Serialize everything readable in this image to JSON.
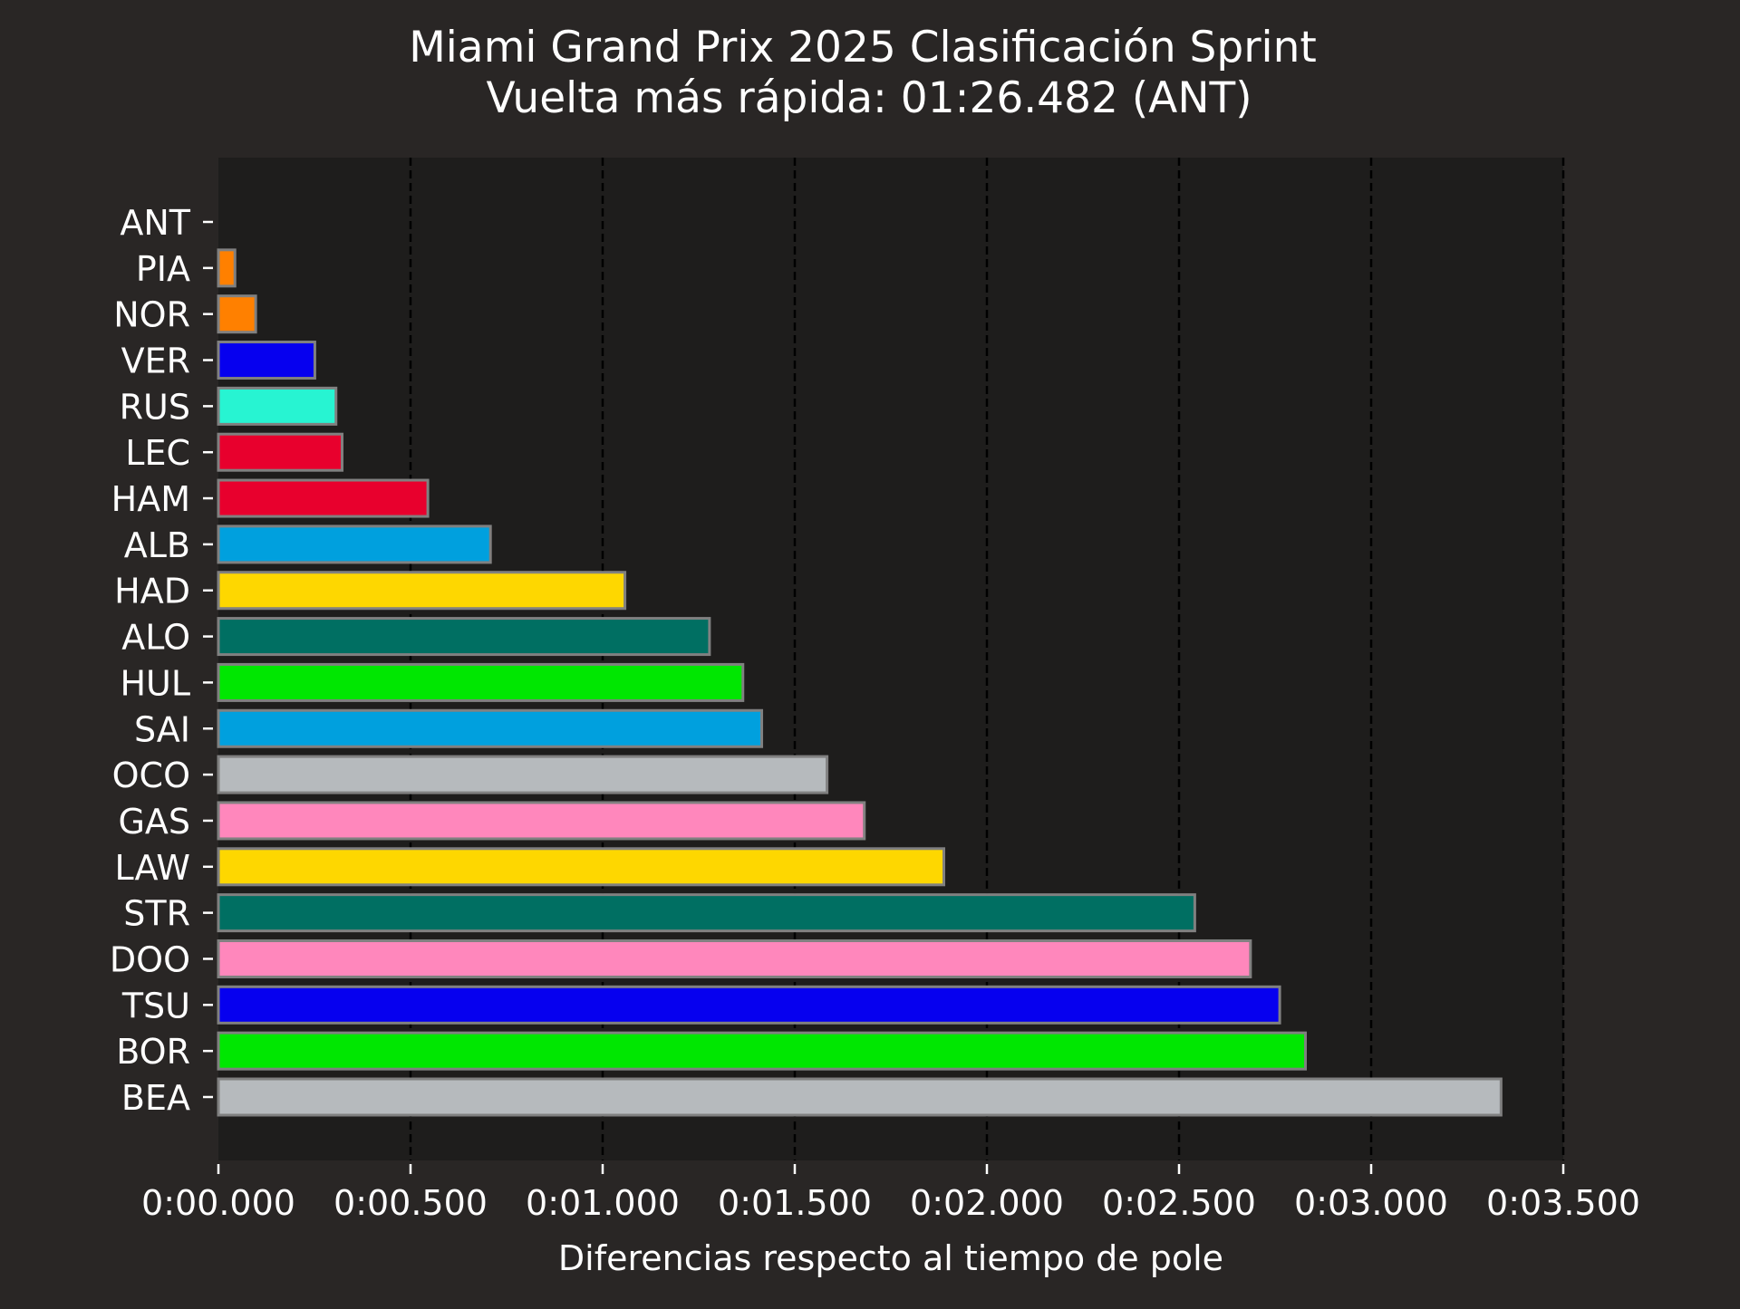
{
  "chart_data": {
    "type": "bar",
    "orientation": "horizontal",
    "title": "Miami Grand Prix 2025 Clasificación Sprint",
    "subtitle": "Vuelta más rápida: 01:26.482 (ANT)",
    "xlabel": "Diferencias respecto al tiempo de pole",
    "ylabel": "",
    "xlim": [
      0,
      3.5
    ],
    "x_unit": "seconds",
    "xticks": [
      0,
      0.5,
      1.0,
      1.5,
      2.0,
      2.5,
      3.0,
      3.5
    ],
    "xtick_labels": [
      "0:00.000",
      "0:00.500",
      "0:01.000",
      "0:01.500",
      "0:02.000",
      "0:02.500",
      "0:03.000",
      "0:03.500"
    ],
    "grid": "vertical dashed",
    "categories": [
      "ANT",
      "PIA",
      "NOR",
      "VER",
      "RUS",
      "LEC",
      "HAM",
      "ALB",
      "HAD",
      "ALO",
      "HUL",
      "SAI",
      "OCO",
      "GAS",
      "LAW",
      "STR",
      "DOO",
      "TSU",
      "BOR",
      "BEA"
    ],
    "values": [
      0.0,
      0.043,
      0.097,
      0.251,
      0.306,
      0.322,
      0.545,
      0.708,
      1.058,
      1.278,
      1.365,
      1.414,
      1.584,
      1.681,
      1.888,
      2.541,
      2.686,
      2.762,
      2.829,
      3.338
    ],
    "colors": [
      "#00d2be",
      "#ff8000",
      "#ff8000",
      "#0600ef",
      "#27f4d2",
      "#e8002d",
      "#e8002d",
      "#00a0de",
      "#fed700",
      "#006f62",
      "#00e701",
      "#00a0de",
      "#b6babd",
      "#ff87bc",
      "#fed700",
      "#006f62",
      "#ff87bc",
      "#0600ef",
      "#00e701",
      "#b6babd"
    ]
  }
}
